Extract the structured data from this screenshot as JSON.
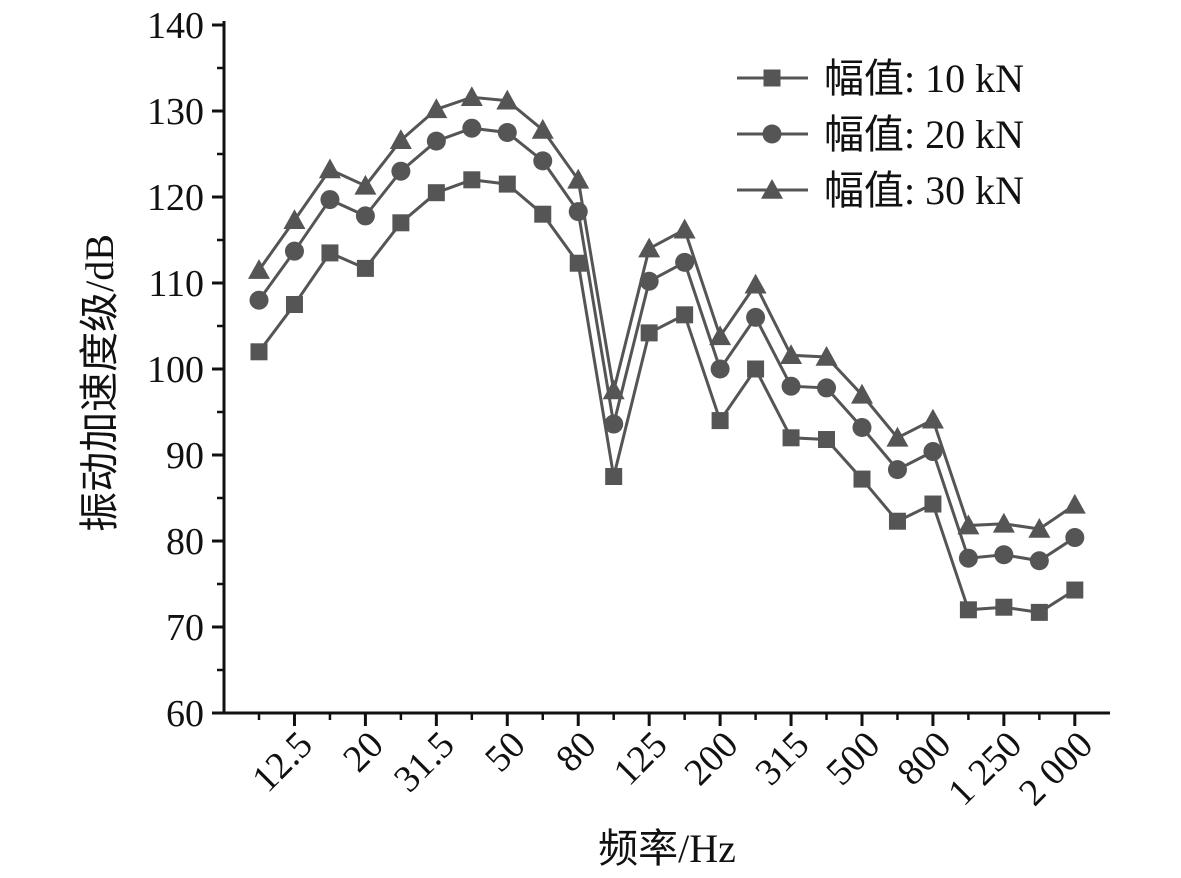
{
  "chart_data": {
    "type": "line",
    "xlabel": "频率/Hz",
    "ylabel": "振动加速度级/dB",
    "ylim": [
      60,
      140
    ],
    "yticks": [
      60,
      70,
      80,
      90,
      100,
      110,
      120,
      130,
      140
    ],
    "x_tick_labels": [
      "12.5",
      "20",
      "31.5",
      "50",
      "80",
      "125",
      "200",
      "315",
      "500",
      "800",
      "1 250",
      "2 000"
    ],
    "x": [
      "10",
      "12.5",
      "16",
      "20",
      "25",
      "31.5",
      "40",
      "50",
      "63",
      "80",
      "100",
      "125",
      "160",
      "200",
      "250",
      "315",
      "400",
      "500",
      "630",
      "800",
      "1 000",
      "1 250",
      "1 600",
      "2 000"
    ],
    "legend_position": "top-right",
    "grid": false,
    "series": [
      {
        "name": "幅值: 10 kN",
        "marker": "square",
        "color": "#555555",
        "values": [
          102,
          107.5,
          113.5,
          111.7,
          117,
          120.5,
          122,
          121.5,
          118,
          112.3,
          87.5,
          104.2,
          106.3,
          94,
          100,
          92,
          91.8,
          87.2,
          82.3,
          84.3,
          72,
          72.3,
          71.7,
          74.3
        ]
      },
      {
        "name": "幅值: 20 kN",
        "marker": "circle",
        "color": "#555555",
        "values": [
          108,
          113.7,
          119.7,
          117.8,
          123,
          126.5,
          128,
          127.5,
          124.2,
          118.3,
          93.6,
          110.2,
          112.4,
          100,
          106,
          98,
          97.8,
          93.2,
          88.3,
          90.4,
          78,
          78.4,
          77.7,
          80.4
        ]
      },
      {
        "name": "幅值: 30 kN",
        "marker": "triangle",
        "color": "#555555",
        "values": [
          111.5,
          117.3,
          123.2,
          121.3,
          126.6,
          130.2,
          131.6,
          131.2,
          127.8,
          122,
          97.5,
          114,
          116.2,
          103.8,
          109.8,
          101.6,
          101.4,
          97,
          92,
          94.1,
          81.8,
          82,
          81.4,
          84.2
        ]
      }
    ]
  }
}
